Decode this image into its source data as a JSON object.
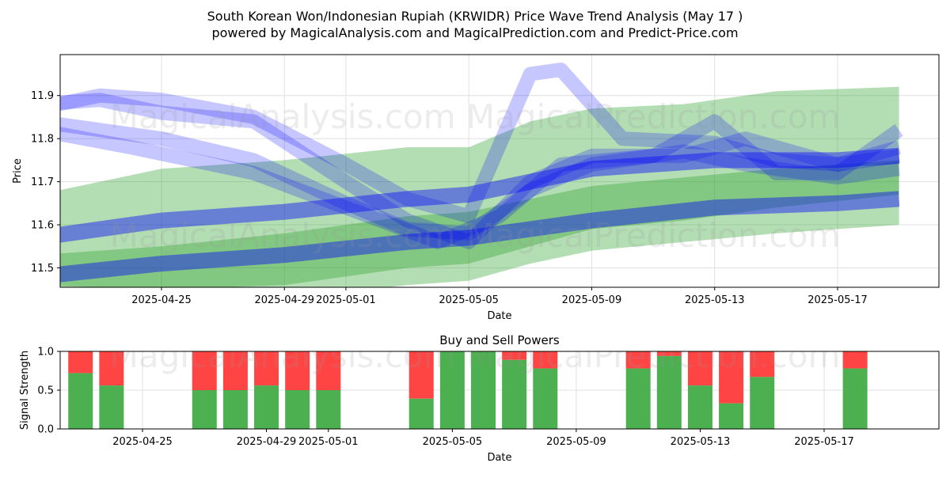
{
  "header": {
    "title_line1": "South Korean Won/Indonesian Rupiah (KRWIDR) Price Wave Trend Analysis (May 17 )",
    "title_line2": "powered by MagicalAnalysis.com and MagicalPrediction.com and Predict-Price.com"
  },
  "watermark": {
    "text": "MagicalAnalysis.com    MagicalPrediction.com"
  },
  "colors": {
    "green": "#2ca02c",
    "blue": "#0000ff",
    "red": "#ff4444",
    "bar_green": "#4caf50"
  },
  "chart_data": [
    {
      "type": "area",
      "xlabel": "Date",
      "ylabel": "Price",
      "x_range": [
        "2025-04-20",
        "2025-05-20"
      ],
      "ylim": [
        11.455,
        11.995
      ],
      "y_ticks": [
        11.5,
        11.6,
        11.7,
        11.8,
        11.9
      ],
      "x_ticks": [
        "2025-04-25",
        "2025-04-29",
        "2025-05-01",
        "2025-05-05",
        "2025-05-09",
        "2025-05-13",
        "2025-05-17"
      ],
      "grid": true,
      "green_bands": [
        {
          "x": [
            "2025-04-21",
            "2025-04-25",
            "2025-04-29",
            "2025-05-03",
            "2025-05-05",
            "2025-05-07",
            "2025-05-09",
            "2025-05-12",
            "2025-05-15",
            "2025-05-19"
          ],
          "upper": [
            11.67,
            11.73,
            11.75,
            11.78,
            11.78,
            11.84,
            11.87,
            11.88,
            11.91,
            11.92
          ],
          "lower": [
            11.46,
            11.45,
            11.46,
            11.5,
            11.51,
            11.55,
            11.59,
            11.61,
            11.64,
            11.67
          ]
        },
        {
          "x": [
            "2025-04-21",
            "2025-04-25",
            "2025-04-29",
            "2025-05-03",
            "2025-05-05",
            "2025-05-07",
            "2025-05-09",
            "2025-05-12",
            "2025-05-15",
            "2025-05-19"
          ],
          "upper": [
            11.53,
            11.55,
            11.58,
            11.62,
            11.63,
            11.66,
            11.69,
            11.71,
            11.73,
            11.75
          ],
          "lower": [
            11.43,
            11.42,
            11.43,
            11.46,
            11.47,
            11.51,
            11.54,
            11.56,
            11.58,
            11.6
          ]
        }
      ],
      "blue_lines": [
        {
          "x": [
            "2025-04-21",
            "2025-04-25",
            "2025-04-29",
            "2025-05-03",
            "2025-05-05",
            "2025-05-09",
            "2025-05-13",
            "2025-05-17",
            "2025-05-19"
          ],
          "y": [
            11.57,
            11.61,
            11.63,
            11.66,
            11.67,
            11.73,
            11.75,
            11.75,
            11.76
          ]
        },
        {
          "x": [
            "2025-04-21",
            "2025-04-25",
            "2025-04-29",
            "2025-05-03",
            "2025-05-05",
            "2025-05-09",
            "2025-05-13",
            "2025-05-17",
            "2025-05-19"
          ],
          "y": [
            11.48,
            11.51,
            11.53,
            11.56,
            11.57,
            11.61,
            11.64,
            11.65,
            11.66
          ]
        },
        {
          "x": [
            "2025-04-21",
            "2025-04-23",
            "2025-04-25",
            "2025-04-28",
            "2025-05-01",
            "2025-05-03",
            "2025-05-05",
            "2025-05-07",
            "2025-05-09",
            "2025-05-12",
            "2025-05-14",
            "2025-05-17",
            "2025-05-19"
          ],
          "y": [
            11.88,
            11.89,
            11.86,
            11.84,
            11.7,
            11.61,
            11.56,
            11.7,
            11.76,
            11.76,
            11.8,
            11.74,
            11.76
          ]
        },
        {
          "x": [
            "2025-04-21",
            "2025-04-23",
            "2025-04-25",
            "2025-04-28",
            "2025-05-01",
            "2025-05-03",
            "2025-05-05",
            "2025-05-07",
            "2025-05-09",
            "2025-05-12",
            "2025-05-14",
            "2025-05-17",
            "2025-05-19"
          ],
          "y": [
            11.84,
            11.82,
            11.8,
            11.75,
            11.65,
            11.59,
            11.58,
            11.68,
            11.74,
            11.77,
            11.74,
            11.71,
            11.73
          ]
        },
        {
          "x": [
            "2025-04-21",
            "2025-04-23",
            "2025-04-25",
            "2025-04-28",
            "2025-05-01",
            "2025-05-03",
            "2025-05-05",
            "2025-05-07",
            "2025-05-08",
            "2025-05-10",
            "2025-05-13",
            "2025-05-15",
            "2025-05-17",
            "2025-05-19"
          ],
          "y": [
            11.87,
            11.9,
            11.89,
            11.85,
            11.74,
            11.66,
            11.62,
            11.95,
            11.96,
            11.8,
            11.79,
            11.75,
            11.74,
            11.78
          ]
        },
        {
          "x": [
            "2025-04-21",
            "2025-04-24",
            "2025-04-28",
            "2025-05-01",
            "2025-05-04",
            "2025-05-06",
            "2025-05-08",
            "2025-05-11",
            "2025-05-13",
            "2025-05-15",
            "2025-05-17",
            "2025-05-19"
          ],
          "y": [
            11.82,
            11.78,
            11.72,
            11.64,
            11.56,
            11.62,
            11.74,
            11.76,
            11.84,
            11.72,
            11.72,
            11.82
          ]
        }
      ]
    },
    {
      "type": "bar",
      "title": "Buy and Sell Powers",
      "xlabel": "Date",
      "ylabel": "Signal Strength",
      "ylim": [
        0,
        1
      ],
      "y_ticks": [
        0.0,
        0.5,
        1.0
      ],
      "x_ticks": [
        "2025-04-25",
        "2025-04-29",
        "2025-05-01",
        "2025-05-05",
        "2025-05-09",
        "2025-05-13",
        "2025-05-17"
      ],
      "grid": true,
      "bars": [
        {
          "date": "2025-04-23",
          "buy": 0.72
        },
        {
          "date": "2025-04-24",
          "buy": 0.56
        },
        {
          "date": "2025-04-27",
          "buy": 0.5
        },
        {
          "date": "2025-04-28",
          "buy": 0.5
        },
        {
          "date": "2025-04-29",
          "buy": 0.56
        },
        {
          "date": "2025-04-30",
          "buy": 0.5
        },
        {
          "date": "2025-05-01",
          "buy": 0.5
        },
        {
          "date": "2025-05-04",
          "buy": 0.39
        },
        {
          "date": "2025-05-05",
          "buy": 1.0
        },
        {
          "date": "2025-05-06",
          "buy": 1.0
        },
        {
          "date": "2025-05-07",
          "buy": 0.89
        },
        {
          "date": "2025-05-08",
          "buy": 0.78
        },
        {
          "date": "2025-05-11",
          "buy": 0.78
        },
        {
          "date": "2025-05-12",
          "buy": 0.94
        },
        {
          "date": "2025-05-13",
          "buy": 0.56
        },
        {
          "date": "2025-05-14",
          "buy": 0.33
        },
        {
          "date": "2025-05-15",
          "buy": 0.67
        },
        {
          "date": "2025-05-18",
          "buy": 0.78
        }
      ]
    }
  ]
}
